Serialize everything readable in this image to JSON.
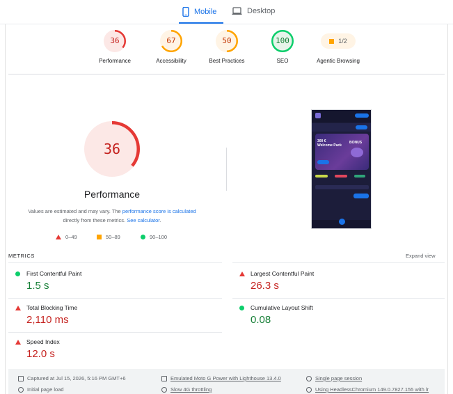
{
  "tabs": [
    {
      "label": "Mobile",
      "icon": "phone-icon",
      "active": true
    },
    {
      "label": "Desktop",
      "icon": "laptop-icon",
      "active": false
    }
  ],
  "categories": [
    {
      "label": "Performance",
      "score": "36",
      "fraction": 0.36,
      "color": "#e53935",
      "bg": "#fce8e6"
    },
    {
      "label": "Accessibility",
      "score": "67",
      "fraction": 0.67,
      "color": "#ffa400",
      "bg": "#fff4e5"
    },
    {
      "label": "Best Practices",
      "score": "50",
      "fraction": 0.5,
      "color": "#ffa400",
      "bg": "#fff4e5"
    },
    {
      "label": "SEO",
      "score": "100",
      "fraction": 1.0,
      "color": "#0cce6b",
      "bg": "#e6f4ea"
    },
    {
      "label": "Agentic Browsing",
      "score": "1/2",
      "color": "#ffa400"
    }
  ],
  "performance": {
    "score": "36",
    "fraction": 0.36,
    "title": "Performance",
    "note_pre": "Values are estimated and may vary. The ",
    "note_link1": "performance score is calculated",
    "note_mid": " directly from these metrics. ",
    "note_link2": "See calculator",
    "note_end": "."
  },
  "legend": [
    {
      "range": "0–49",
      "shape": "triangle",
      "color": "#e53935"
    },
    {
      "range": "50–89",
      "shape": "square",
      "color": "#ffa400"
    },
    {
      "range": "90–100",
      "shape": "circle",
      "color": "#0cce6b"
    }
  ],
  "metrics": {
    "heading": "METRICS",
    "expand_label": "Expand view",
    "items": [
      {
        "name": "First Contentful Paint",
        "value": "1.5 s",
        "status": "good"
      },
      {
        "name": "Largest Contentful Paint",
        "value": "26.3 s",
        "status": "poor"
      },
      {
        "name": "Total Blocking Time",
        "value": "2,110 ms",
        "status": "poor"
      },
      {
        "name": "Cumulative Layout Shift",
        "value": "0.08",
        "status": "good"
      },
      {
        "name": "Speed Index",
        "value": "12.0 s",
        "status": "poor"
      }
    ]
  },
  "screenshot": {
    "banner_line1": "300 €",
    "banner_line2": "Welcome Pack",
    "banner_badge": "BONUS"
  },
  "footer": {
    "captured": "Captured at Jul 15, 2026, 5:16 PM GMT+6",
    "device": "Emulated Moto G Power with Lighthouse 13.4.0",
    "session": "Single page session",
    "load": "Initial page load",
    "throttling": "Slow 4G throttling",
    "browser": "Using HeadlessChromium 149.0.7827.155 with lr"
  }
}
